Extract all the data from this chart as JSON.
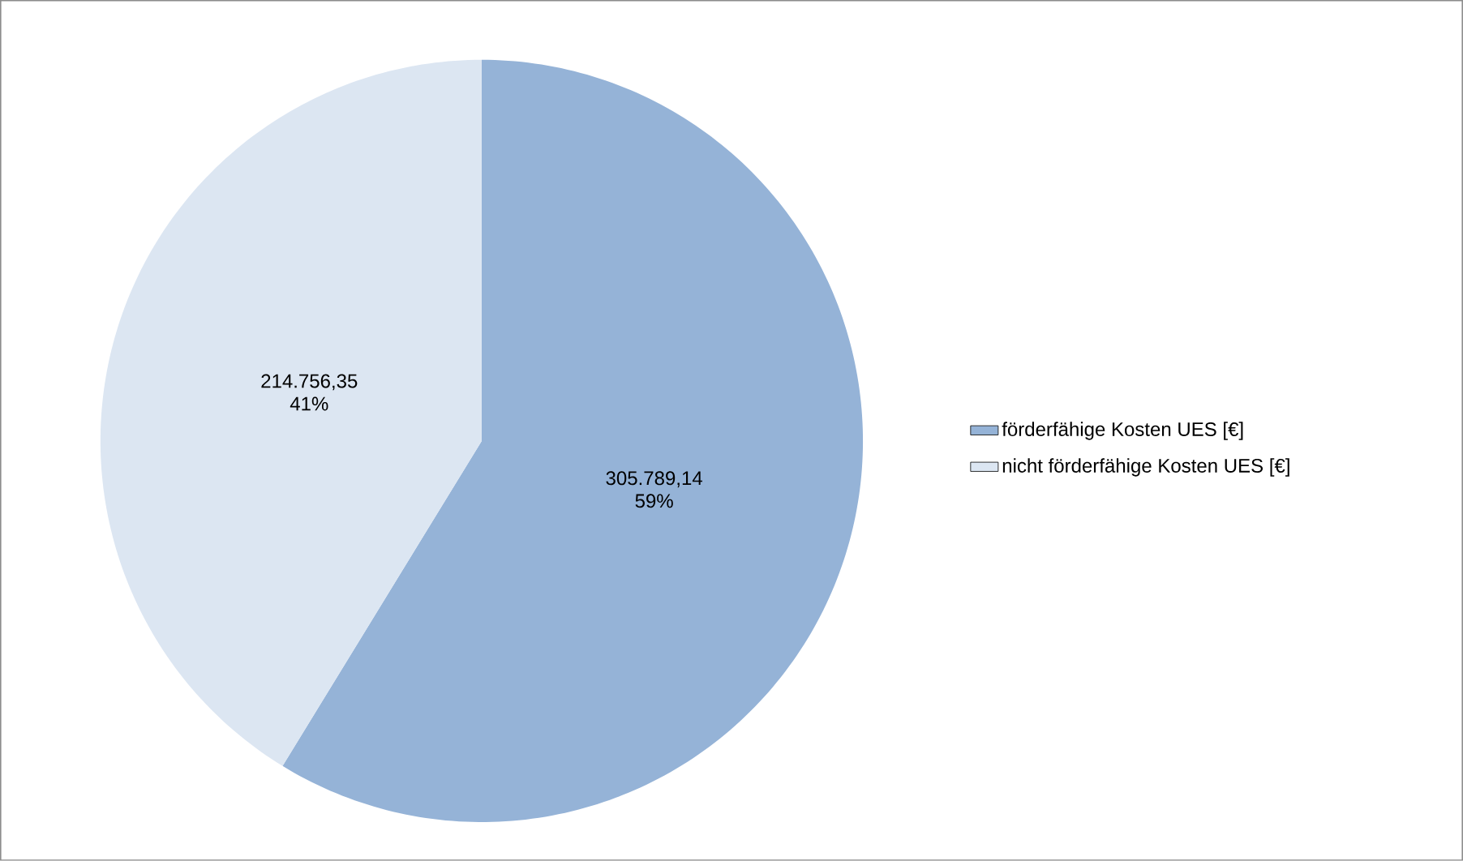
{
  "chart_data": {
    "type": "pie",
    "categories": [
      "förderfähige Kosten UES [€]",
      "nicht förderfähige Kosten UES [€]"
    ],
    "values": [
      305789.14,
      214756.35
    ],
    "colors": [
      "#95b3d7",
      "#dce6f2"
    ],
    "value_labels": [
      "305.789,14",
      "214.756,35"
    ],
    "annotations": [
      "59%",
      "41%"
    ],
    "legend": "right"
  }
}
